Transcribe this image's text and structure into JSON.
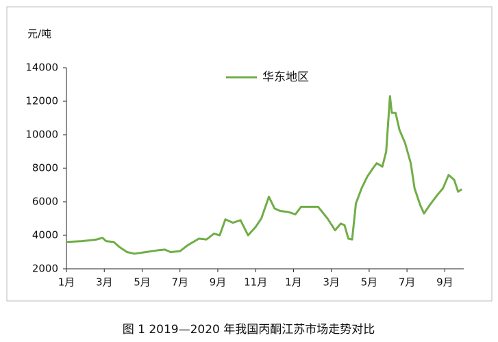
{
  "chart_data": {
    "type": "line",
    "y_label": "元/吨",
    "caption": "图 1  2019—2020 年我国丙酮江苏市场走势对比",
    "x": [
      0,
      0.8,
      1.6,
      1.9,
      2.1,
      2.5,
      2.8,
      3.2,
      3.6,
      4.2,
      4.8,
      5.2,
      5.5,
      6.0,
      6.4,
      7.0,
      7.4,
      7.8,
      8.1,
      8.4,
      8.8,
      9.2,
      9.6,
      10.0,
      10.3,
      10.7,
      11.0,
      11.3,
      11.7,
      12.1,
      12.4,
      13.0,
      13.3,
      13.8,
      14.2,
      14.5,
      14.7,
      14.9,
      15.1,
      15.3,
      15.6,
      15.9,
      16.2,
      16.4,
      16.7,
      16.9,
      17.1,
      17.2,
      17.4,
      17.6,
      17.9,
      18.2,
      18.4,
      18.7,
      18.9,
      19.2,
      19.6,
      19.9,
      20.2,
      20.5,
      20.7,
      20.9
    ],
    "series": [
      {
        "name": "华东地区",
        "color": "#70ad47",
        "values": [
          3600,
          3650,
          3750,
          3850,
          3650,
          3600,
          3300,
          3000,
          2900,
          3000,
          3100,
          3150,
          3000,
          3050,
          3400,
          3800,
          3750,
          4100,
          4000,
          4950,
          4750,
          4900,
          4000,
          4500,
          5000,
          6300,
          5600,
          5450,
          5400,
          5250,
          5700,
          5700,
          5700,
          5000,
          4300,
          4700,
          4600,
          3800,
          3750,
          5900,
          6800,
          7500,
          8000,
          8300,
          8100,
          9000,
          12300,
          11300,
          11300,
          10300,
          9500,
          8300,
          6800,
          5800,
          5300,
          5800,
          6400,
          6800,
          7600,
          7300,
          6600,
          6750
        ]
      }
    ],
    "xlim": [
      0,
      21
    ],
    "xticks": [
      {
        "value": 0,
        "label": "1月"
      },
      {
        "value": 2,
        "label": "3月"
      },
      {
        "value": 4,
        "label": "5月"
      },
      {
        "value": 6,
        "label": "7月"
      },
      {
        "value": 8,
        "label": "9月"
      },
      {
        "value": 10,
        "label": "11月"
      },
      {
        "value": 12,
        "label": "1月"
      },
      {
        "value": 14,
        "label": "3月"
      },
      {
        "value": 16,
        "label": "5月"
      },
      {
        "value": 18,
        "label": "7月"
      },
      {
        "value": 20,
        "label": "9月"
      }
    ],
    "ylim": [
      2000,
      14000
    ],
    "yticks": [
      2000,
      4000,
      6000,
      8000,
      10000,
      12000,
      14000
    ]
  }
}
